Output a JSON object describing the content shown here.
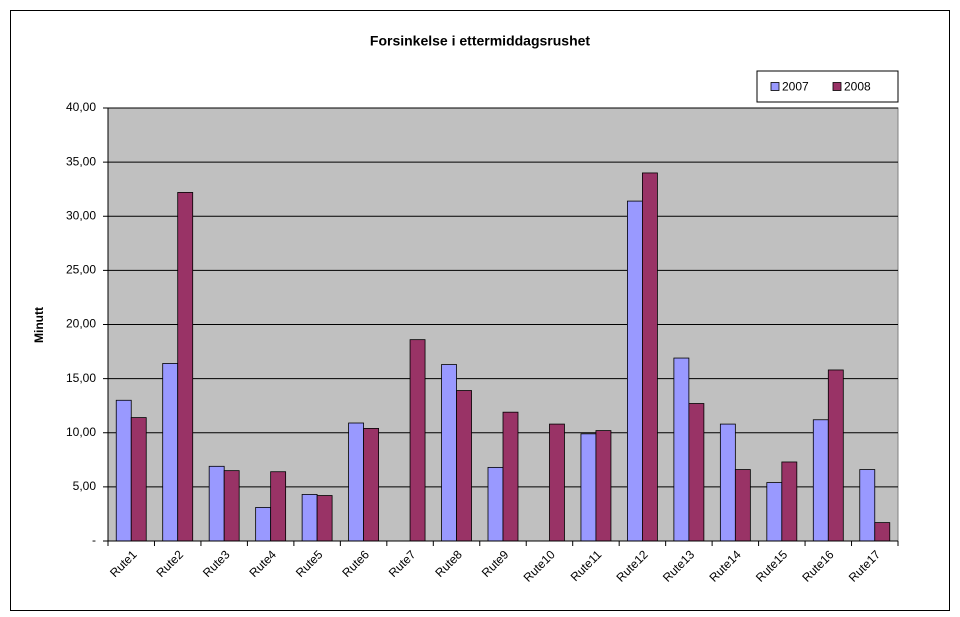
{
  "chart_data": {
    "type": "bar",
    "title": "Forsinkelse i ettermiddagsrushet",
    "ylabel": "Minutt",
    "categories": [
      "Rute1",
      "Rute2",
      "Rute3",
      "Rute4",
      "Rute5",
      "Rute6",
      "Rute7",
      "Rute8",
      "Rute9",
      "Rute10",
      "Rute11",
      "Rute12",
      "Rute13",
      "Rute14",
      "Rute15",
      "Rute16",
      "Rute17"
    ],
    "series": [
      {
        "name": "2007",
        "color": "#9999ff",
        "values": [
          13.0,
          16.4,
          6.9,
          3.1,
          4.3,
          10.9,
          null,
          16.3,
          6.8,
          null,
          9.9,
          31.4,
          16.9,
          10.8,
          5.4,
          11.2,
          6.6
        ]
      },
      {
        "name": "2008",
        "color": "#993366",
        "values": [
          11.4,
          32.2,
          6.5,
          6.4,
          4.2,
          10.4,
          18.6,
          13.9,
          11.9,
          10.8,
          10.2,
          34.0,
          12.7,
          6.6,
          7.3,
          15.8,
          1.7
        ]
      }
    ],
    "ylim": [
      0,
      40
    ],
    "yticks": [
      {
        "value": 0,
        "label": "-"
      },
      {
        "value": 5,
        "label": "5,00"
      },
      {
        "value": 10,
        "label": "10,00"
      },
      {
        "value": 15,
        "label": "15,00"
      },
      {
        "value": 20,
        "label": "20,00"
      },
      {
        "value": 25,
        "label": "25,00"
      },
      {
        "value": 30,
        "label": "30,00"
      },
      {
        "value": 35,
        "label": "35,00"
      },
      {
        "value": 40,
        "label": "40,00"
      }
    ],
    "grid": true,
    "legend": "top-right",
    "plot_background": "#c0c0c0"
  }
}
